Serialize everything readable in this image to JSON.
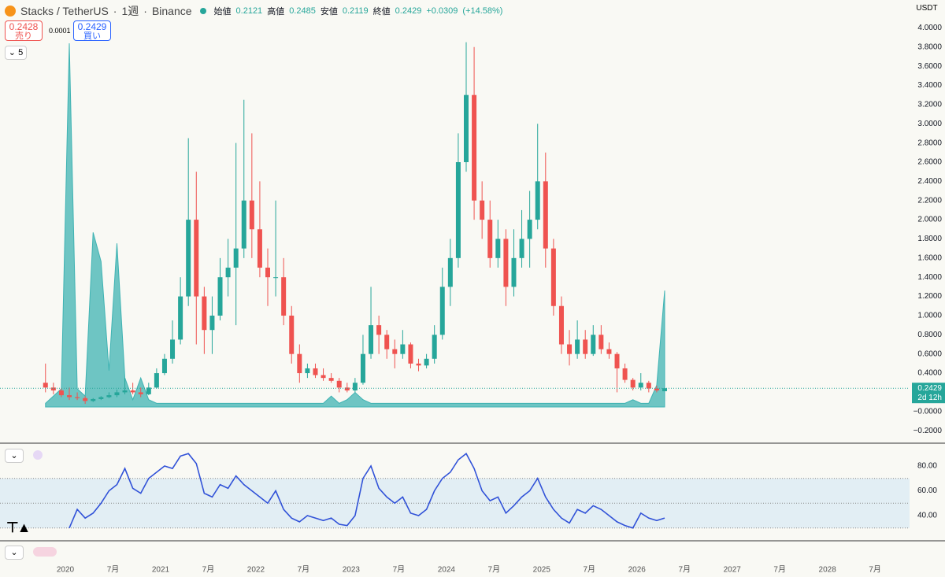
{
  "header": {
    "title": "Stacks / TetherUS",
    "interval": "1週",
    "exchange": "Binance",
    "labels": [
      "始値",
      "高値",
      "安値",
      "終値"
    ],
    "change": "+0.0309",
    "change_pct": "(+14.58%)",
    "sell": "0.2428",
    "sell_label": "売り",
    "spread": "0.0001",
    "buy": "0.2429",
    "buy_label": "買い",
    "indicators": "5",
    "currency": "USDT",
    "countdown": "2d 12h"
  },
  "chart_data": [
    {
      "type": "candlestick",
      "up_color": "#26a69a",
      "down_color": "#ef5350",
      "x": [
        "2019-10",
        "2019-11",
        "2019-12",
        "2020-01",
        "2020-02",
        "2020-03",
        "2020-04",
        "2020-05",
        "2020-06",
        "2020-07",
        "2020-08",
        "2020-09",
        "2020-10",
        "2020-11",
        "2020-12",
        "2021-01",
        "2021-02",
        "2021-03",
        "2021-04",
        "2021-05",
        "2021-06",
        "2021-07",
        "2021-08",
        "2021-09",
        "2021-10",
        "2021-11",
        "2021-12",
        "2022-01",
        "2022-02",
        "2022-03",
        "2022-04",
        "2022-05",
        "2022-06",
        "2022-07",
        "2022-08",
        "2022-09",
        "2022-10",
        "2022-11",
        "2022-12",
        "2023-01",
        "2023-02",
        "2023-03",
        "2023-04",
        "2023-05",
        "2023-06",
        "2023-07",
        "2023-08",
        "2023-09",
        "2023-10",
        "2023-11",
        "2023-12",
        "2024-01",
        "2024-02",
        "2024-03",
        "2024-04",
        "2024-05",
        "2024-06",
        "2024-07",
        "2024-08",
        "2024-09",
        "2024-10",
        "2024-11",
        "2024-12",
        "2025-01",
        "2025-02",
        "2025-03",
        "2025-04",
        "2025-05",
        "2025-06",
        "2025-07",
        "2025-08",
        "2025-09",
        "2025-10",
        "2025-11",
        "2025-12",
        "2026-01",
        "2026-02",
        "2026-03",
        "2026-04"
      ],
      "open": [
        0.3,
        0.25,
        0.22,
        0.17,
        0.15,
        0.14,
        0.11,
        0.13,
        0.15,
        0.17,
        0.2,
        0.22,
        0.2,
        0.18,
        0.25,
        0.4,
        0.55,
        0.75,
        1.2,
        2.0,
        1.2,
        0.85,
        1.0,
        1.4,
        1.5,
        1.7,
        2.2,
        1.9,
        1.5,
        1.4,
        1.4,
        1.0,
        0.6,
        0.4,
        0.45,
        0.38,
        0.35,
        0.32,
        0.25,
        0.22,
        0.3,
        0.6,
        0.9,
        0.8,
        0.65,
        0.6,
        0.7,
        0.5,
        0.48,
        0.55,
        0.8,
        1.3,
        1.6,
        2.6,
        3.3,
        2.2,
        2.0,
        1.6,
        1.8,
        1.3,
        1.6,
        1.8,
        2.0,
        2.4,
        1.7,
        1.1,
        0.7,
        0.6,
        0.75,
        0.6,
        0.8,
        0.65,
        0.6,
        0.45,
        0.33,
        0.25,
        0.3,
        0.24,
        0.2121
      ],
      "high": [
        0.5,
        0.3,
        0.24,
        0.25,
        0.2,
        0.16,
        0.14,
        0.16,
        0.2,
        0.23,
        0.35,
        0.3,
        0.25,
        0.3,
        0.45,
        0.6,
        0.95,
        1.4,
        2.85,
        2.5,
        1.3,
        1.2,
        1.6,
        1.8,
        2.8,
        3.25,
        2.9,
        2.4,
        1.7,
        2.2,
        1.6,
        1.1,
        0.7,
        0.5,
        0.5,
        0.45,
        0.4,
        0.35,
        0.3,
        0.35,
        0.8,
        1.3,
        1.0,
        0.85,
        0.75,
        0.85,
        0.72,
        0.55,
        0.6,
        0.9,
        1.5,
        1.8,
        2.9,
        3.85,
        3.8,
        2.4,
        2.2,
        2.0,
        1.9,
        1.9,
        2.1,
        2.3,
        3.0,
        2.7,
        1.8,
        1.2,
        0.85,
        0.95,
        0.85,
        0.9,
        0.9,
        0.72,
        0.62,
        0.5,
        0.35,
        0.4,
        0.32,
        0.27,
        0.2485
      ],
      "low": [
        0.2,
        0.18,
        0.15,
        0.12,
        0.12,
        0.08,
        0.1,
        0.12,
        0.14,
        0.15,
        0.18,
        0.18,
        0.15,
        0.17,
        0.24,
        0.38,
        0.5,
        0.7,
        1.1,
        0.7,
        0.6,
        0.6,
        0.95,
        1.2,
        0.9,
        1.6,
        1.6,
        1.4,
        1.1,
        1.2,
        0.9,
        0.5,
        0.3,
        0.35,
        0.35,
        0.32,
        0.3,
        0.2,
        0.2,
        0.2,
        0.28,
        0.55,
        0.6,
        0.55,
        0.45,
        0.55,
        0.45,
        0.42,
        0.45,
        0.5,
        0.75,
        1.1,
        1.5,
        2.5,
        2.0,
        1.8,
        1.5,
        1.5,
        1.1,
        1.2,
        1.5,
        1.5,
        1.9,
        1.5,
        1.0,
        0.6,
        0.48,
        0.55,
        0.55,
        0.58,
        0.6,
        0.55,
        0.2,
        0.3,
        0.22,
        0.22,
        0.2,
        0.2,
        0.2119
      ],
      "close": [
        0.25,
        0.22,
        0.17,
        0.15,
        0.14,
        0.11,
        0.13,
        0.15,
        0.17,
        0.2,
        0.22,
        0.2,
        0.18,
        0.25,
        0.4,
        0.55,
        0.75,
        1.2,
        2.0,
        1.2,
        0.85,
        1.0,
        1.4,
        1.5,
        1.7,
        2.2,
        1.9,
        1.5,
        1.4,
        1.4,
        1.0,
        0.6,
        0.4,
        0.45,
        0.38,
        0.35,
        0.32,
        0.25,
        0.22,
        0.3,
        0.6,
        0.9,
        0.8,
        0.65,
        0.6,
        0.7,
        0.5,
        0.48,
        0.55,
        0.8,
        1.3,
        1.6,
        2.6,
        3.3,
        2.2,
        2.0,
        1.6,
        1.8,
        1.3,
        1.6,
        1.8,
        2.0,
        2.4,
        1.7,
        1.1,
        0.7,
        0.6,
        0.75,
        0.6,
        0.8,
        0.65,
        0.6,
        0.45,
        0.33,
        0.25,
        0.3,
        0.24,
        0.22,
        0.2429
      ],
      "ylim": [
        -0.33,
        4.11
      ],
      "yticks": [
        {
          "value": 4.0,
          "label": "4.0000"
        },
        {
          "value": 3.8,
          "label": "3.8000"
        },
        {
          "value": 3.6,
          "label": "3.6000"
        },
        {
          "value": 3.4,
          "label": "3.4000"
        },
        {
          "value": 3.2,
          "label": "3.2000"
        },
        {
          "value": 3.0,
          "label": "3.0000"
        },
        {
          "value": 2.8,
          "label": "2.8000"
        },
        {
          "value": 2.6,
          "label": "2.6000"
        },
        {
          "value": 2.4,
          "label": "2.4000"
        },
        {
          "value": 2.2,
          "label": "2.2000"
        },
        {
          "value": 2.0,
          "label": "2.0000"
        },
        {
          "value": 1.8,
          "label": "1.8000"
        },
        {
          "value": 1.6,
          "label": "1.6000"
        },
        {
          "value": 1.4,
          "label": "1.4000"
        },
        {
          "value": 1.2,
          "label": "1.2000"
        },
        {
          "value": 1.0,
          "label": "1.0000"
        },
        {
          "value": 0.8,
          "label": "0.8000"
        },
        {
          "value": 0.6,
          "label": "0.6000"
        },
        {
          "value": 0.4,
          "label": "0.4000"
        },
        {
          "value": 0.2,
          "label": "0.2000"
        },
        {
          "value": 0,
          "label": "−0.0000"
        },
        {
          "value": -0.2,
          "label": "−0.2000"
        }
      ],
      "xticks": [
        {
          "value": "2020-01",
          "label": "2020"
        },
        {
          "value": "2020-07",
          "label": "7月"
        },
        {
          "value": "2021-01",
          "label": "2021"
        },
        {
          "value": "2021-07",
          "label": "7月"
        },
        {
          "value": "2022-01",
          "label": "2022"
        },
        {
          "value": "2022-07",
          "label": "7月"
        },
        {
          "value": "2023-01",
          "label": "2023"
        },
        {
          "value": "2023-07",
          "label": "7月"
        },
        {
          "value": "2024-01",
          "label": "2024"
        },
        {
          "value": "2024-07",
          "label": "7月"
        },
        {
          "value": "2025-01",
          "label": "2025"
        },
        {
          "value": "2025-07",
          "label": "7月"
        },
        {
          "value": "2026-01",
          "label": "2026"
        },
        {
          "value": "2026-07",
          "label": "7月"
        },
        {
          "value": "2027-01",
          "label": "2027"
        },
        {
          "value": "2027-07",
          "label": "7月"
        },
        {
          "value": "2028-01",
          "label": "2028"
        },
        {
          "value": "2028-07",
          "label": "7月"
        }
      ]
    },
    {
      "type": "area",
      "color": "#3fb3b3",
      "ylim": [
        0,
        100
      ],
      "x": [
        "2019-10",
        "2019-11",
        "2019-12",
        "2020-01",
        "2020-02",
        "2020-03",
        "2020-04",
        "2020-05",
        "2020-06",
        "2020-07",
        "2020-08",
        "2020-09",
        "2020-10",
        "2020-11",
        "2020-12",
        "2021-01",
        "2021-02",
        "2021-03",
        "2021-04",
        "2021-05",
        "2021-06",
        "2021-07",
        "2021-08",
        "2021-09",
        "2021-10",
        "2021-11",
        "2021-12",
        "2022-01",
        "2022-02",
        "2022-03",
        "2022-04",
        "2022-05",
        "2022-06",
        "2022-07",
        "2022-08",
        "2022-09",
        "2022-10",
        "2022-11",
        "2022-12",
        "2023-01",
        "2023-02",
        "2023-03",
        "2023-04",
        "2023-05",
        "2023-06",
        "2023-07",
        "2023-08",
        "2023-09",
        "2023-10",
        "2023-11",
        "2023-12",
        "2024-01",
        "2024-02",
        "2024-03",
        "2024-04",
        "2024-05",
        "2024-06",
        "2024-07",
        "2024-08",
        "2024-09",
        "2024-10",
        "2024-11",
        "2024-12",
        "2025-01",
        "2025-02",
        "2025-03",
        "2025-04",
        "2025-05",
        "2025-06",
        "2025-07",
        "2025-08",
        "2025-09",
        "2025-10",
        "2025-11",
        "2025-12",
        "2026-01",
        "2026-02",
        "2026-03",
        "2026-04"
      ],
      "values": [
        1,
        3,
        5,
        100,
        5,
        3,
        48,
        40,
        10,
        45,
        8,
        2,
        8,
        2,
        1,
        1,
        1,
        1,
        1,
        1,
        1,
        1,
        1,
        1,
        1,
        1,
        1,
        1,
        1,
        1,
        1,
        1,
        1,
        1,
        1,
        1,
        3,
        1,
        2,
        4,
        2,
        1,
        1,
        1,
        1,
        1,
        1,
        1,
        1,
        1,
        1,
        1,
        1,
        1,
        1,
        1,
        1,
        1,
        1,
        1,
        1,
        1,
        1,
        1,
        1,
        1,
        1,
        1,
        1,
        1,
        1,
        1,
        1,
        1,
        2,
        1,
        1,
        6,
        32
      ]
    },
    {
      "type": "line",
      "color": "#3152d8",
      "band": [
        30,
        70
      ],
      "midline": 50,
      "ylim": [
        19.7,
        98.4
      ],
      "x": [
        "2019-10",
        "2019-11",
        "2019-12",
        "2020-01",
        "2020-02",
        "2020-03",
        "2020-04",
        "2020-05",
        "2020-06",
        "2020-07",
        "2020-08",
        "2020-09",
        "2020-10",
        "2020-11",
        "2020-12",
        "2021-01",
        "2021-02",
        "2021-03",
        "2021-04",
        "2021-05",
        "2021-06",
        "2021-07",
        "2021-08",
        "2021-09",
        "2021-10",
        "2021-11",
        "2021-12",
        "2022-01",
        "2022-02",
        "2022-03",
        "2022-04",
        "2022-05",
        "2022-06",
        "2022-07",
        "2022-08",
        "2022-09",
        "2022-10",
        "2022-11",
        "2022-12",
        "2023-01",
        "2023-02",
        "2023-03",
        "2023-04",
        "2023-05",
        "2023-06",
        "2023-07",
        "2023-08",
        "2023-09",
        "2023-10",
        "2023-11",
        "2023-12",
        "2024-01",
        "2024-02",
        "2024-03",
        "2024-04",
        "2024-05",
        "2024-06",
        "2024-07",
        "2024-08",
        "2024-09",
        "2024-10",
        "2024-11",
        "2024-12",
        "2025-01",
        "2025-02",
        "2025-03",
        "2025-04",
        "2025-05",
        "2025-06",
        "2025-07",
        "2025-08",
        "2025-09",
        "2025-10",
        "2025-11",
        "2025-12",
        "2026-01",
        "2026-02",
        "2026-03",
        "2026-04"
      ],
      "values": [
        null,
        null,
        null,
        30,
        45,
        38,
        42,
        50,
        60,
        65,
        78,
        62,
        58,
        70,
        75,
        80,
        78,
        88,
        90,
        82,
        58,
        55,
        65,
        62,
        72,
        65,
        60,
        55,
        50,
        60,
        45,
        38,
        35,
        40,
        38,
        36,
        38,
        33,
        32,
        40,
        70,
        80,
        62,
        55,
        50,
        55,
        42,
        40,
        45,
        60,
        70,
        75,
        85,
        90,
        78,
        60,
        52,
        55,
        42,
        48,
        55,
        60,
        70,
        55,
        45,
        38,
        34,
        45,
        42,
        48,
        45,
        40,
        35,
        32,
        30,
        42,
        38,
        36,
        38
      ],
      "yticks": [
        {
          "value": 80,
          "label": "80.00"
        },
        {
          "value": 60,
          "label": "60.00"
        },
        {
          "value": 40,
          "label": "40.00"
        }
      ]
    }
  ]
}
